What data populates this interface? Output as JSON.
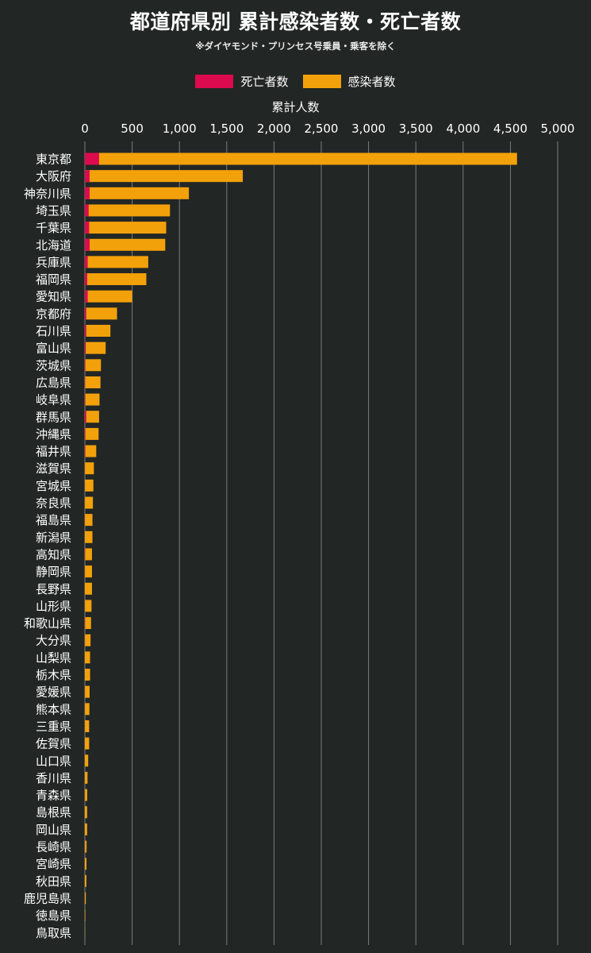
{
  "chart_data": {
    "type": "bar",
    "orientation": "horizontal",
    "stacked": true,
    "title": "都道府県別 累計感染者数・死亡者数",
    "subtitle": "※ダイヤモンド・プリンセス号乗員・乗客を除く",
    "xlabel": "累計人数",
    "xlim": [
      0,
      5000
    ],
    "xticks": [
      "0",
      "500",
      "1,000",
      "1,500",
      "2,000",
      "2,500",
      "3,000",
      "3,500",
      "4,000",
      "4,500",
      "5,000"
    ],
    "xtick_values": [
      0,
      500,
      1000,
      1500,
      2000,
      2500,
      3000,
      3500,
      4000,
      4500,
      5000
    ],
    "grid": true,
    "legend_position": "top-center",
    "categories": [
      "東京都",
      "大阪府",
      "神奈川県",
      "埼玉県",
      "千葉県",
      "北海道",
      "兵庫県",
      "福岡県",
      "愛知県",
      "京都府",
      "石川県",
      "富山県",
      "茨城県",
      "広島県",
      "岐阜県",
      "群馬県",
      "沖縄県",
      "福井県",
      "滋賀県",
      "宮城県",
      "奈良県",
      "福島県",
      "新潟県",
      "高知県",
      "静岡県",
      "長野県",
      "山形県",
      "和歌山県",
      "大分県",
      "山梨県",
      "栃木県",
      "愛媛県",
      "熊本県",
      "三重県",
      "佐賀県",
      "山口県",
      "香川県",
      "青森県",
      "島根県",
      "岡山県",
      "長崎県",
      "宮崎県",
      "秋田県",
      "鹿児島県",
      "徳島県",
      "鳥取県"
    ],
    "series": [
      {
        "name": "死亡者数",
        "color": "#dc0a4f",
        "values": [
          150,
          50,
          50,
          40,
          45,
          50,
          30,
          25,
          30,
          15,
          15,
          10,
          5,
          3,
          5,
          15,
          5,
          5,
          1,
          1,
          1,
          1,
          0,
          3,
          1,
          0,
          1,
          3,
          1,
          0,
          0,
          1,
          1,
          1,
          0,
          0,
          0,
          1,
          0,
          0,
          1,
          0,
          0,
          0,
          0,
          0
        ]
      },
      {
        "name": "感染者数",
        "color": "#f3a10a",
        "values": [
          4570,
          1670,
          1100,
          900,
          860,
          850,
          670,
          650,
          500,
          340,
          270,
          220,
          170,
          165,
          155,
          150,
          145,
          120,
          95,
          90,
          85,
          80,
          80,
          75,
          75,
          75,
          70,
          65,
          60,
          55,
          55,
          50,
          48,
          45,
          45,
          35,
          28,
          25,
          24,
          24,
          18,
          17,
          16,
          10,
          5,
          2
        ]
      }
    ]
  }
}
